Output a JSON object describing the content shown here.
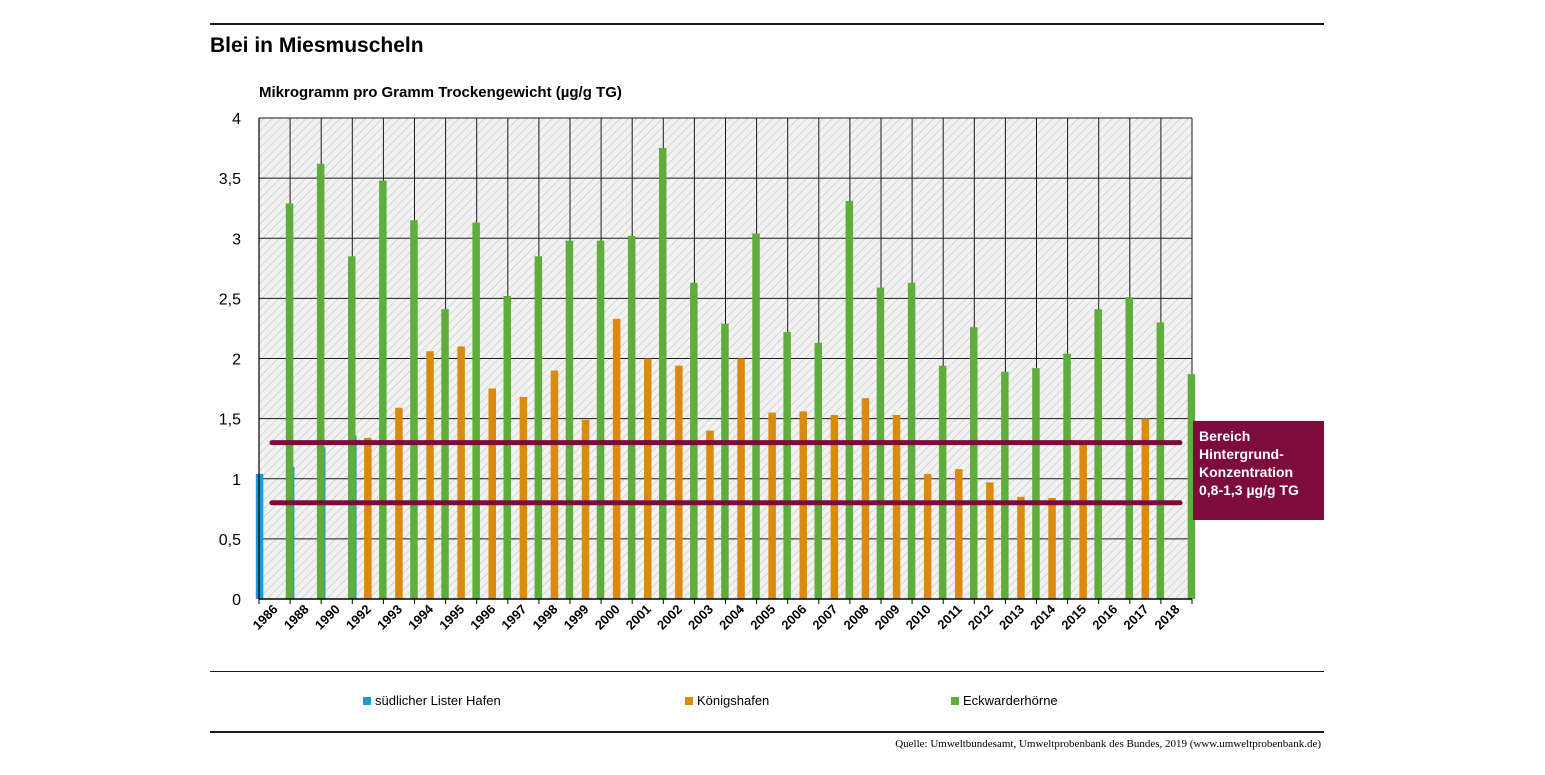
{
  "title": "Blei in Miesmuscheln",
  "unit_label": "Mikrogramm pro Gramm Trockengewicht (µg/g TG)",
  "source": "Quelle: Umweltbundesamt, Umweltprobenbank des Bundes, 2019 (www.umweltprobenbank.de)",
  "band_label": {
    "lines": [
      "Bereich",
      "Hintergrund-",
      "Konzentration",
      "0,8-1,3 µg/g TG"
    ],
    "color": "#7d0c3d"
  },
  "chart_data": {
    "type": "bar",
    "title": "Blei in Miesmuscheln",
    "ylabel": "Mikrogramm pro Gramm Trockengewicht (µg/g TG)",
    "xlabel": "",
    "ylim": [
      0,
      4
    ],
    "yticks": [
      0,
      0.5,
      1,
      1.5,
      2,
      2.5,
      3,
      3.5,
      4
    ],
    "ytick_labels": [
      "0",
      "0,5",
      "1",
      "1,5",
      "2",
      "2,5",
      "3",
      "3,5",
      "4"
    ],
    "grid": true,
    "categories": [
      "1986",
      "1988",
      "1990",
      "1992",
      "1993",
      "1994",
      "1995",
      "1996",
      "1997",
      "1998",
      "1999",
      "2000",
      "2001",
      "2002",
      "2003",
      "2004",
      "2005",
      "2006",
      "2007",
      "2008",
      "2009",
      "2010",
      "2011",
      "2012",
      "2013",
      "2014",
      "2015",
      "2016",
      "2017",
      "2018"
    ],
    "series": [
      {
        "name": "südlicher Lister Hafen",
        "color": "#1a9bd7",
        "values": [
          1.04,
          1.1,
          1.26,
          1.36,
          null,
          null,
          null,
          null,
          null,
          null,
          null,
          null,
          null,
          null,
          null,
          null,
          null,
          null,
          null,
          null,
          null,
          null,
          null,
          null,
          null,
          null,
          null,
          null,
          null,
          null
        ]
      },
      {
        "name": "Königshafen",
        "color": "#d98a0f",
        "values": [
          null,
          null,
          null,
          1.34,
          1.59,
          2.06,
          2.1,
          1.75,
          1.68,
          1.9,
          1.49,
          2.33,
          2.0,
          1.94,
          1.4,
          2.0,
          1.55,
          1.56,
          1.53,
          1.67,
          1.53,
          1.04,
          1.08,
          0.97,
          0.85,
          0.84,
          1.3,
          null,
          1.5,
          null
        ]
      },
      {
        "name": "Eckwarderhörne",
        "color": "#5fad3a",
        "values": [
          3.29,
          3.62,
          2.85,
          3.48,
          3.15,
          2.41,
          3.13,
          2.52,
          2.85,
          2.98,
          2.98,
          3.02,
          3.75,
          2.63,
          2.29,
          3.04,
          2.22,
          2.13,
          3.31,
          2.59,
          2.63,
          1.94,
          2.26,
          1.89,
          1.92,
          2.04,
          2.41,
          2.51,
          2.3,
          1.87
        ]
      }
    ],
    "reference_lines": [
      {
        "value": 1.3,
        "color": "#7d0c3d"
      },
      {
        "value": 0.8,
        "color": "#7d0c3d"
      }
    ],
    "legend_position": "bottom"
  }
}
